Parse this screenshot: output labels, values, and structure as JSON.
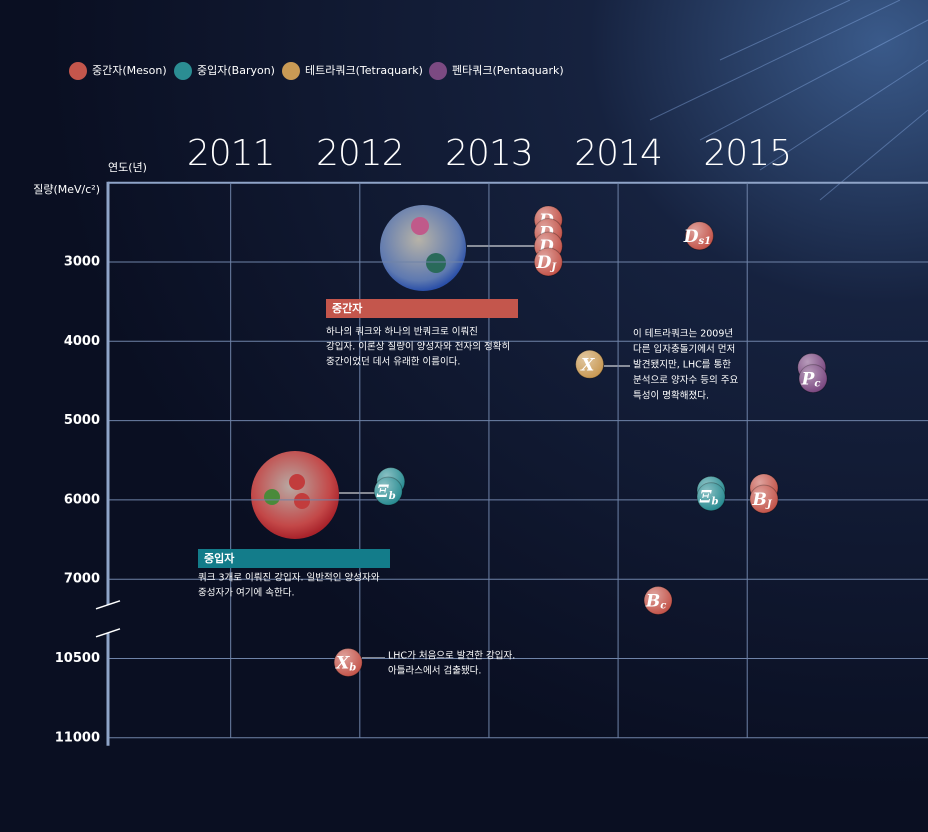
{
  "chart_data": {
    "type": "scatter",
    "legend": [
      {
        "name": "중간자(Meson)",
        "color": "#c4564c"
      },
      {
        "name": "중입자(Baryon)",
        "color": "#2b8d93"
      },
      {
        "name": "테트라쿼크(Tetraquark)",
        "color": "#c99a55"
      },
      {
        "name": "펜타쿼크(Pentaquark)",
        "color": "#7c4a82"
      }
    ],
    "x_label": "연도(년)",
    "y_label": "질량(MeV/c²)",
    "xlim": [
      2010.05,
      2016.4
    ],
    "xticks": [
      2011,
      2012,
      2013,
      2014,
      2015
    ],
    "ylim": [
      2000,
      11000
    ],
    "yticks": [
      3000,
      4000,
      5000,
      6000,
      7000,
      10500,
      11000
    ],
    "points": [
      {
        "name": "D",
        "sub": null,
        "group": 0,
        "x": 2013.46,
        "y": 2470
      },
      {
        "name": "D",
        "sub": null,
        "group": 0,
        "x": 2013.46,
        "y": 2630
      },
      {
        "name": "D",
        "sub": null,
        "group": 0,
        "x": 2013.46,
        "y": 2800
      },
      {
        "name": "D",
        "sub": "J",
        "group": 0,
        "x": 2013.46,
        "y": 3000
      },
      {
        "name": "D",
        "sub": "s1",
        "group": 0,
        "x": 2014.63,
        "y": 2670
      },
      {
        "name": "X",
        "sub": null,
        "group": 2,
        "x": 2013.78,
        "y": 4290
      },
      {
        "name": null,
        "sub": null,
        "group": 3,
        "x": 2015.5,
        "y": 4330
      },
      {
        "name": "P",
        "sub": "c",
        "group": 3,
        "x": 2015.51,
        "y": 4470
      },
      {
        "name": null,
        "sub": null,
        "group": 1,
        "x": 2012.24,
        "y": 5770
      },
      {
        "name": "Ξ",
        "sub": "b",
        "group": 1,
        "x": 2012.22,
        "y": 5890
      },
      {
        "name": null,
        "sub": null,
        "group": 1,
        "x": 2014.72,
        "y": 5880
      },
      {
        "name": "Ξ",
        "sub": "b",
        "group": 1,
        "x": 2014.72,
        "y": 5960
      },
      {
        "name": null,
        "sub": null,
        "group": 0,
        "x": 2015.13,
        "y": 5850
      },
      {
        "name": "B",
        "sub": "J",
        "group": 0,
        "x": 2015.13,
        "y": 5990
      },
      {
        "name": "B",
        "sub": "c",
        "group": 0,
        "x": 2014.31,
        "y": 7940
      },
      {
        "name": "X",
        "sub": "b",
        "group": 0,
        "x": 2011.91,
        "y": 10525
      }
    ],
    "annotations": {
      "meson": {
        "title": "중간자",
        "lines": [
          "하나의 쿼크와 하나의 반쿼크로 이뤄진",
          "강입자. 이론상 질량이 양성자와 전자의 정확히",
          "중간이었던 데서 유래한 이름이다."
        ]
      },
      "baryon": {
        "title": "중입자",
        "lines": [
          "쿼크 3개로 이뤄진 강입자. 일반적인 양성자와",
          "중성자가 여기에 속한다."
        ]
      },
      "tetraquark": {
        "lines": [
          "이 테트라쿼크는 2009년",
          "다른 입자충돌기에서 먼저",
          "발견됐지만, LHC를 통한",
          "분석으로 양자수 등의 주요",
          "특성이 명확해졌다."
        ]
      },
      "xb": {
        "lines": [
          "LHC가 처음으로 발견한 강입자.",
          "아틀라스에서 검출됐다."
        ]
      }
    }
  }
}
